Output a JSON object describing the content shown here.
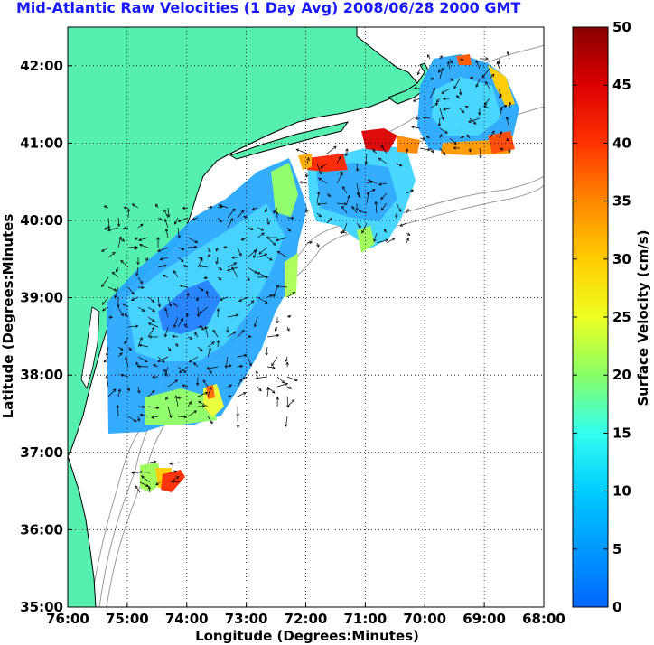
{
  "title": "Mid-Atlantic Raw Velocities (1 Day Avg) 2008/06/28 2000 GMT",
  "xlabel": "Longitude (Degrees:Minutes)",
  "ylabel": "Latitude (Degrees:Minutes",
  "colorbar_label": "Surface Velocity (cm/s)",
  "x_ticks": [
    "76:00",
    "75:00",
    "74:00",
    "73:00",
    "72:00",
    "71:00",
    "70:00",
    "69:00",
    "68:00"
  ],
  "y_ticks": [
    "42:00",
    "41:00",
    "40:00",
    "39:00",
    "38:00",
    "37:00",
    "36:00",
    "35:00"
  ],
  "colorbar_ticks": [
    "50",
    "45",
    "40",
    "35",
    "30",
    "25",
    "20",
    "15",
    "10",
    "5",
    "0"
  ],
  "colors": {
    "land": "#55efb0",
    "title": "#1a1aff",
    "grid": "#000000",
    "bathymetry": "#9a9a9a"
  },
  "chart_data": {
    "type": "heatmap",
    "title": "Mid-Atlantic Raw Velocities (1 Day Avg) 2008/06/28 2000 GMT",
    "xlabel": "Longitude (Degrees:Minutes)",
    "ylabel": "Latitude (Degrees:Minutes",
    "xlim": [
      -76,
      -68
    ],
    "ylim": [
      35,
      42.5
    ],
    "grid": true,
    "colorbar": {
      "label": "Surface Velocity (cm/s)",
      "range": [
        0,
        50
      ],
      "colormap": "jet"
    },
    "high_velocity_zones": [
      {
        "lon": -73.65,
        "lat": 36.6,
        "speed": 42
      },
      {
        "lon": -73.55,
        "lat": 37.75,
        "speed": 38
      },
      {
        "lon": -71.5,
        "lat": 40.75,
        "speed": 40
      },
      {
        "lon": -70.9,
        "lat": 41.0,
        "speed": 44
      },
      {
        "lon": -69.2,
        "lat": 40.95,
        "speed": 35
      },
      {
        "lon": -68.7,
        "lat": 41.6,
        "speed": 28
      }
    ]
  }
}
